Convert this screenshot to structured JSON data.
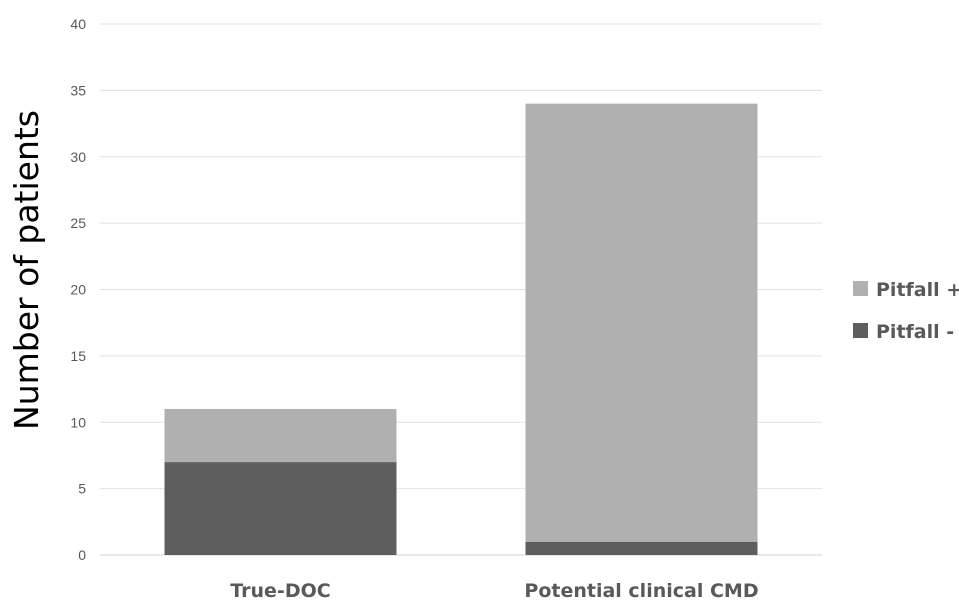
{
  "chart_data": {
    "type": "bar",
    "stacked": true,
    "title": "",
    "xlabel": "",
    "ylabel": "Number of patients",
    "ylim": [
      0,
      40
    ],
    "yticks": [
      0,
      5,
      10,
      15,
      20,
      25,
      30,
      35,
      40
    ],
    "grid": true,
    "legend_position": "right",
    "categories": [
      "True-DOC",
      "Potential clinical CMD"
    ],
    "series": [
      {
        "name": "Pitfall -",
        "values": [
          7,
          1
        ],
        "color": "#5e5e5e"
      },
      {
        "name": "Pitfall +",
        "values": [
          4,
          33
        ],
        "color": "#b0b0b0"
      }
    ],
    "legend_order": [
      "Pitfall +",
      "Pitfall -"
    ]
  }
}
